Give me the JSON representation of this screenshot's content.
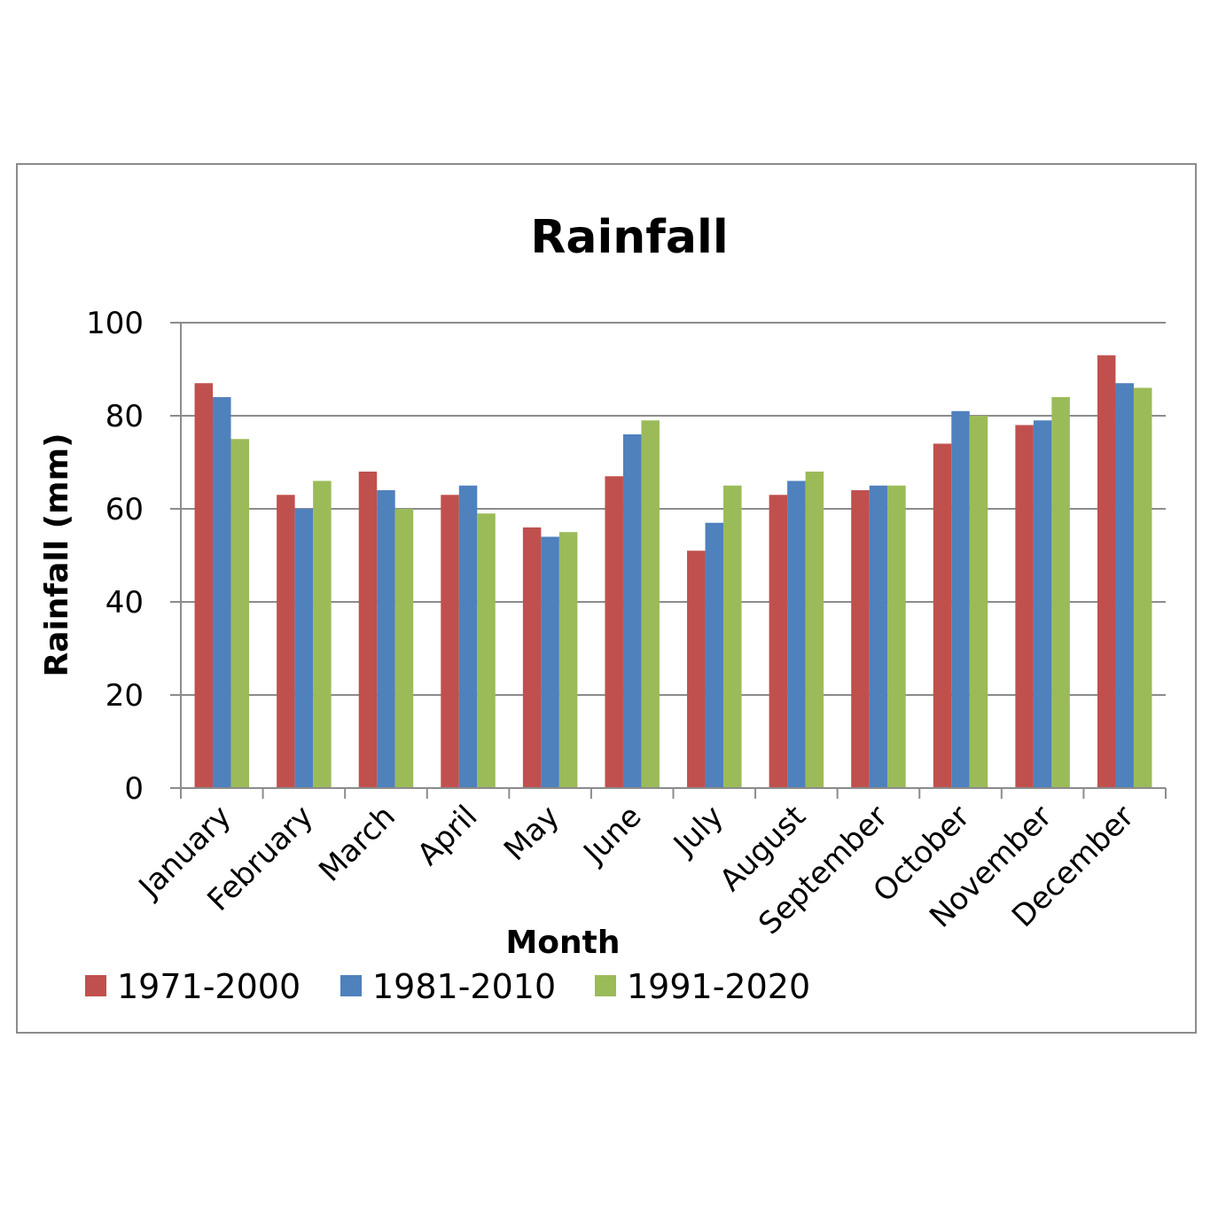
{
  "chart_data": {
    "type": "bar",
    "title": "Rainfall",
    "xlabel": "Month",
    "ylabel": "Rainfall (mm)",
    "ylim": [
      0,
      100
    ],
    "yticks": [
      "0",
      "20",
      "40",
      "60",
      "80",
      "100"
    ],
    "grid": true,
    "legend_position": "bottom",
    "categories": [
      "January",
      "February",
      "March",
      "April",
      "May",
      "June",
      "July",
      "August",
      "September",
      "October",
      "November",
      "December"
    ],
    "series": [
      {
        "name": "1971-2000",
        "color": "#C0504D",
        "values": [
          87,
          63,
          68,
          63,
          56,
          67,
          51,
          63,
          64,
          74,
          78,
          93
        ]
      },
      {
        "name": "1981-2010",
        "color": "#4F81BD",
        "values": [
          84,
          60,
          64,
          65,
          54,
          76,
          57,
          66,
          65,
          81,
          79,
          87
        ]
      },
      {
        "name": "1991-2020",
        "color": "#9BBB59",
        "values": [
          75,
          66,
          60,
          59,
          55,
          79,
          65,
          68,
          65,
          80,
          84,
          86
        ]
      }
    ]
  }
}
